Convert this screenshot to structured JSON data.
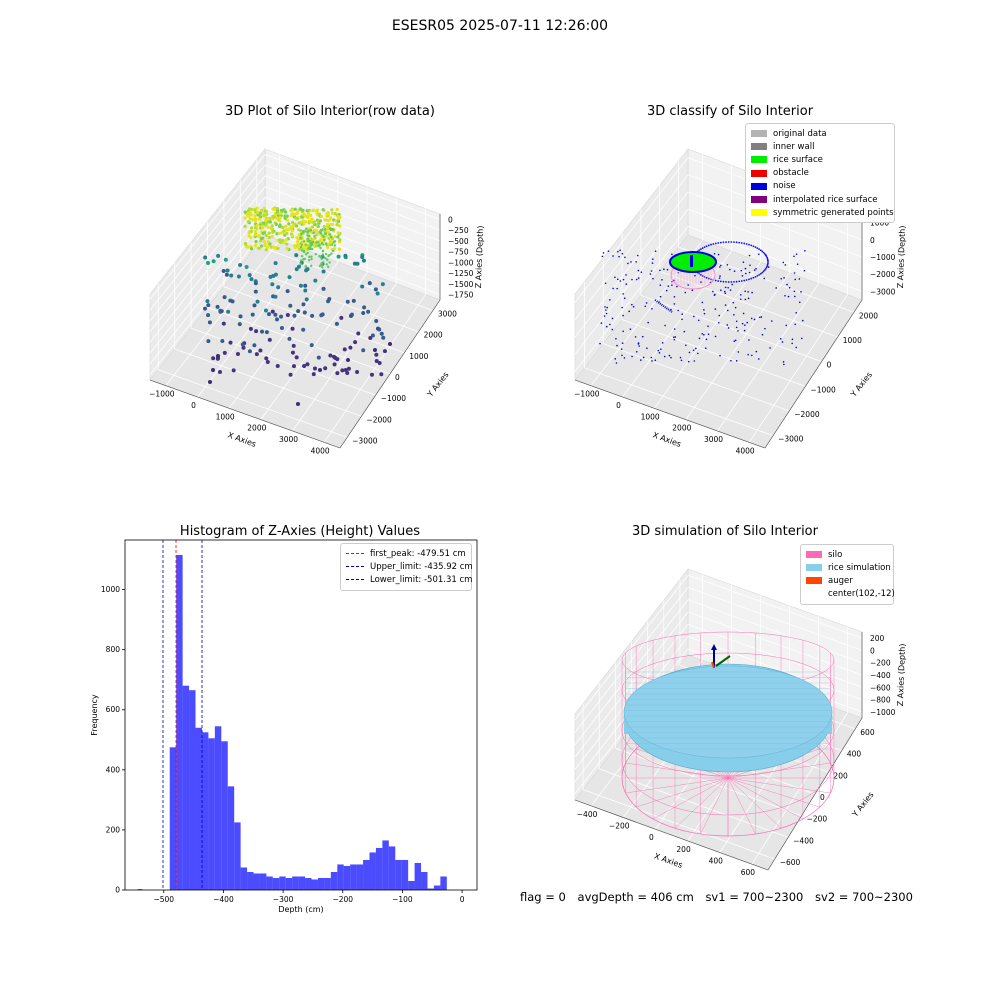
{
  "suptitle": "ESESR05 2025-07-11 12:26:00",
  "footer": {
    "flag": "flag = 0",
    "avg_depth": "avgDepth = 406 cm",
    "sv1": "sv1 = 700~2300",
    "sv2": "sv2 = 700~2300"
  },
  "chart_data": [
    {
      "type": "scatter",
      "title": "3D Plot of Silo Interior(row data)",
      "xlabel": "X Axies",
      "ylabel": "Y Axies",
      "zlabel": "Z Axies (Depth)",
      "xticks": [
        "−1000",
        "0",
        "1000",
        "2000",
        "3000",
        "4000"
      ],
      "yticks": [
        "−3000",
        "−2000",
        "−1000",
        "0",
        "1000",
        "2000",
        "3000"
      ],
      "zticks": [
        "0",
        "−250",
        "−500",
        "−750",
        "−1000",
        "−1250",
        "−1500",
        "−1750"
      ],
      "colormap": "viridis"
    },
    {
      "type": "scatter",
      "title": "3D classify of Silo Interior",
      "xlabel": "X Axies",
      "ylabel": "Y Axies",
      "zlabel": "Z Axies (Depth)",
      "xticks": [
        "−1000",
        "0",
        "1000",
        "2000",
        "3000",
        "4000"
      ],
      "yticks": [
        "−3000",
        "−2000",
        "−1000",
        "0",
        "1000",
        "2000"
      ],
      "zticks": [
        "1000",
        "0",
        "−1000",
        "−2000",
        "−3000"
      ],
      "legend": [
        {
          "label": "original data",
          "color": "#b3b3b3"
        },
        {
          "label": "inner wall",
          "color": "#808080"
        },
        {
          "label": "rice surface",
          "color": "#00ee00"
        },
        {
          "label": "obstacle",
          "color": "#ee0000"
        },
        {
          "label": "noise",
          "color": "#0000dd"
        },
        {
          "label": "interpolated rice surface",
          "color": "#800080"
        },
        {
          "label": "symmetric generated points",
          "color": "#ffff00"
        }
      ],
      "legend_position": "top-right"
    },
    {
      "type": "bar",
      "title": "Histogram of Z-Axies (Height) Values",
      "xlabel": "Depth (cm)",
      "ylabel": "Frequency",
      "xlim": [
        -565,
        25
      ],
      "ylim": [
        0,
        1165
      ],
      "xticks": [
        -500,
        -400,
        -300,
        -200,
        -100,
        0
      ],
      "xtick_labels": [
        "−500",
        "−400",
        "−300",
        "−200",
        "−100",
        "0"
      ],
      "yticks": [
        0,
        200,
        400,
        600,
        800,
        1000
      ],
      "bar_color": "#0000ff",
      "bin_start": -490,
      "bin_width": 10.8,
      "values": [
        475,
        1115,
        680,
        665,
        540,
        525,
        505,
        545,
        495,
        345,
        225,
        75,
        60,
        55,
        55,
        45,
        40,
        45,
        40,
        45,
        45,
        40,
        35,
        40,
        40,
        60,
        85,
        80,
        85,
        85,
        100,
        125,
        140,
        165,
        145,
        100,
        100,
        30,
        90,
        60,
        5,
        15,
        45
      ],
      "outliers": [
        {
          "x": -540,
          "value": 3
        }
      ],
      "vlines": [
        {
          "label": "first_peak: -479.51 cm",
          "x": -479.51,
          "color": "#ff0000"
        },
        {
          "label": "Upper_limit: -435.92 cm",
          "x": -435.92,
          "color": "#0000aa"
        },
        {
          "label": "Lower_limit: -501.31 cm",
          "x": -501.31,
          "color": "#0000aa"
        }
      ],
      "legend_position": "top-right"
    },
    {
      "type": "scatter",
      "title": "3D simulation of Silo Interior",
      "xlabel": "X Axies",
      "ylabel": "Y Axies",
      "zlabel": "Z Axies (Depth)",
      "xticks": [
        "−400",
        "−200",
        "0",
        "200",
        "400",
        "600"
      ],
      "yticks": [
        "−600",
        "−400",
        "−200",
        "0",
        "200",
        "400",
        "600"
      ],
      "zticks": [
        "200",
        "0",
        "−200",
        "−400",
        "−600",
        "−800",
        "−1000"
      ],
      "legend": [
        {
          "label": "silo",
          "color": "#ff69b4"
        },
        {
          "label": "rice simulation",
          "color": "#87ceeb"
        },
        {
          "label": "auger",
          "color": "#ff4500"
        },
        {
          "label": "center(102,-12)",
          "color": ""
        }
      ],
      "legend_position": "top-right"
    }
  ]
}
